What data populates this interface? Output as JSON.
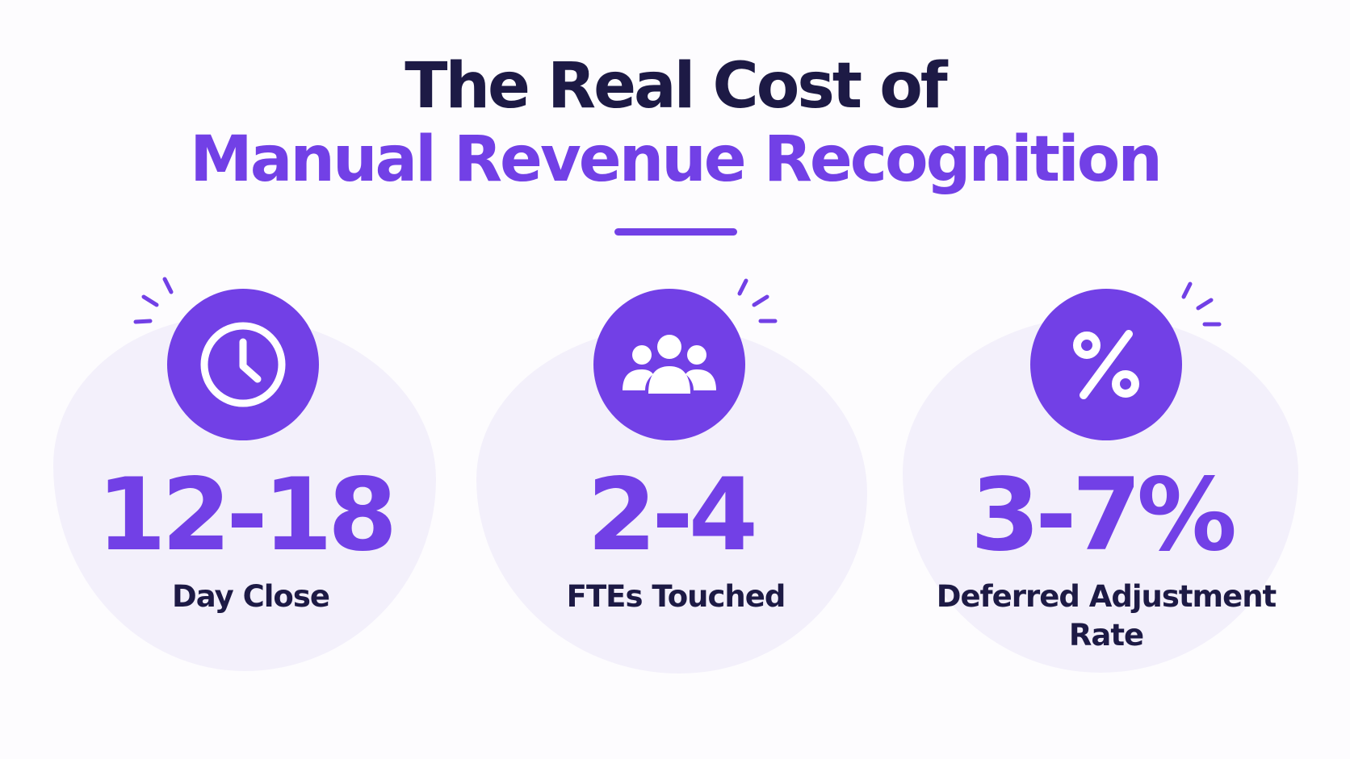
{
  "title": {
    "line1": "The Real Cost of",
    "line2": "Manual Revenue Recognition"
  },
  "colors": {
    "accent": "#7240e6",
    "heading": "#1d1a45",
    "card": "#f3f0fb",
    "background": "#fdfcfe"
  },
  "stats": [
    {
      "icon": "clock-icon",
      "value": "12-18",
      "label": "Day Close"
    },
    {
      "icon": "people-icon",
      "value": "2-4",
      "label": "FTEs Touched"
    },
    {
      "icon": "percent-icon",
      "value": "3-7%",
      "label": "Deferred Adjustment Rate"
    }
  ]
}
